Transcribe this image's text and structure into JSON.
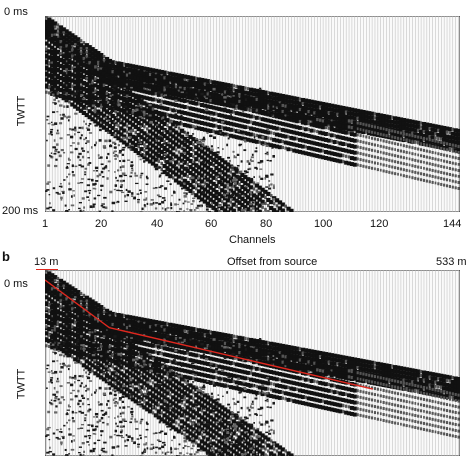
{
  "panel_a": {
    "y_top": "0 ms",
    "y_bottom": "200 ms",
    "y_label": "TWTT",
    "x_label": "Channels",
    "x_ticks": [
      "1",
      "20",
      "40",
      "60",
      "80",
      "100",
      "120",
      "144"
    ]
  },
  "panel_b": {
    "letter": "b",
    "offset_left": "13 m",
    "offset_title": "Offset from source",
    "offset_right": "533 m",
    "y_top": "0 ms",
    "y_label": "TWTT",
    "colors": {
      "pick_line": "#e0281f",
      "underline": "#e0281f"
    }
  },
  "chart_data": [
    {
      "type": "other",
      "description_free": true,
      "x_axis": {
        "label": "Channels",
        "ticks": [
          1,
          20,
          40,
          60,
          80,
          100,
          120,
          144
        ],
        "range": [
          1,
          144
        ]
      },
      "y_axis": {
        "label": "TWTT",
        "ticks": [
          "0 ms",
          "200 ms"
        ],
        "range_ms": [
          0,
          200
        ]
      }
    },
    {
      "type": "other",
      "x_axis": {
        "label": "Offset from source",
        "range_m": [
          13,
          533
        ]
      },
      "y_axis": {
        "label": "TWTT",
        "ticks": [
          "0 ms"
        ]
      }
    }
  ]
}
